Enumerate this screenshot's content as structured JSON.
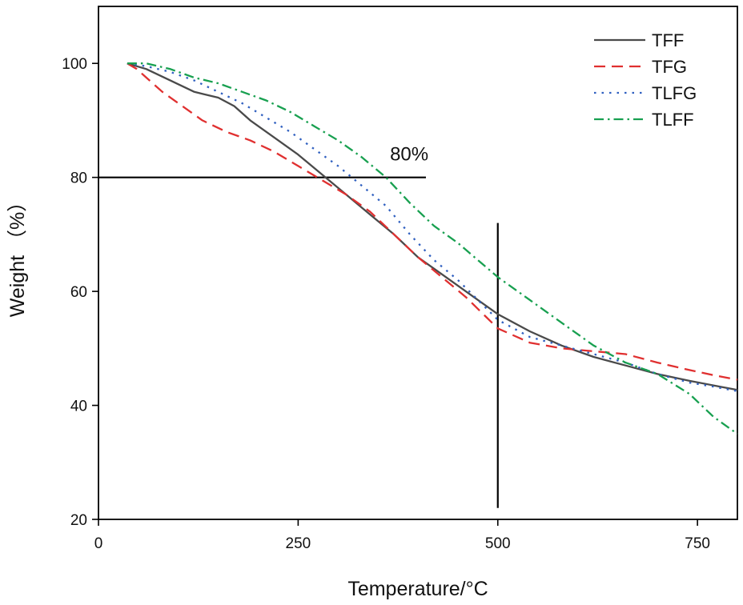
{
  "chart_data": {
    "type": "line",
    "title": "",
    "xlabel": "Temperature/°C",
    "ylabel": "Weight （%）",
    "xlim": [
      0,
      800
    ],
    "ylim": [
      20,
      110
    ],
    "xticks": [
      0,
      250,
      500,
      750
    ],
    "yticks": [
      20,
      40,
      60,
      80,
      100
    ],
    "grid": false,
    "legend_position": "top-right",
    "series": [
      {
        "name": "TFF",
        "color": "#4a4a4a",
        "dash": "solid",
        "x": [
          36,
          60,
          90,
          120,
          150,
          170,
          190,
          220,
          250,
          280,
          310,
          340,
          370,
          400,
          430,
          460,
          500,
          540,
          580,
          620,
          660,
          700,
          740,
          770,
          800
        ],
        "y": [
          100,
          99,
          97,
          95,
          94,
          92.5,
          90,
          87,
          84,
          80.5,
          77,
          73.5,
          70,
          66,
          63,
          60,
          56,
          53,
          50.5,
          48.5,
          47,
          45.5,
          44.3,
          43.5,
          42.7
        ]
      },
      {
        "name": "TFG",
        "color": "#e03030",
        "dash": "dashed",
        "x": [
          36,
          48,
          60,
          80,
          100,
          130,
          160,
          190,
          220,
          250,
          280,
          310,
          340,
          370,
          400,
          430,
          460,
          500,
          540,
          580,
          620,
          660,
          700,
          740,
          770,
          800
        ],
        "y": [
          100,
          99,
          97.5,
          95,
          93,
          90,
          88,
          86.5,
          84.5,
          82,
          79.5,
          77,
          74,
          70,
          66,
          62.5,
          59,
          53.5,
          51,
          50,
          49.5,
          49,
          47.5,
          46.2,
          45.3,
          44.5
        ]
      },
      {
        "name": "TLFG",
        "color": "#3060c0",
        "dash": "dotted",
        "x": [
          36,
          60,
          90,
          120,
          150,
          180,
          210,
          240,
          270,
          300,
          330,
          360,
          390,
          420,
          450,
          500,
          540,
          580,
          620,
          660,
          700,
          740,
          770,
          800
        ],
        "y": [
          100,
          99.5,
          98.5,
          97,
          95,
          93,
          90.5,
          88,
          85,
          82,
          78.5,
          75,
          70,
          65.5,
          62,
          55,
          52,
          50.5,
          49,
          47.5,
          45.5,
          44,
          43.3,
          42.5
        ]
      },
      {
        "name": "TLFF",
        "color": "#18a050",
        "dash": "dashdot",
        "x": [
          36,
          60,
          90,
          120,
          150,
          180,
          210,
          240,
          270,
          300,
          330,
          360,
          390,
          420,
          450,
          500,
          540,
          580,
          620,
          660,
          700,
          740,
          770,
          800
        ],
        "y": [
          100,
          100,
          99,
          97.5,
          96.5,
          95,
          93.5,
          91.5,
          89,
          86.5,
          83.5,
          80,
          75.5,
          71.5,
          68.5,
          62.5,
          58.5,
          54.5,
          50.5,
          47.5,
          45.5,
          42,
          38,
          35
        ]
      }
    ],
    "annotations": [
      {
        "text": "80%",
        "type": "text",
        "x": 365,
        "y": 83
      },
      {
        "type": "hline",
        "y": 80,
        "x0": 0,
        "x1": 410
      },
      {
        "type": "vline",
        "x": 500,
        "y0": 22,
        "y1": 72
      }
    ]
  }
}
